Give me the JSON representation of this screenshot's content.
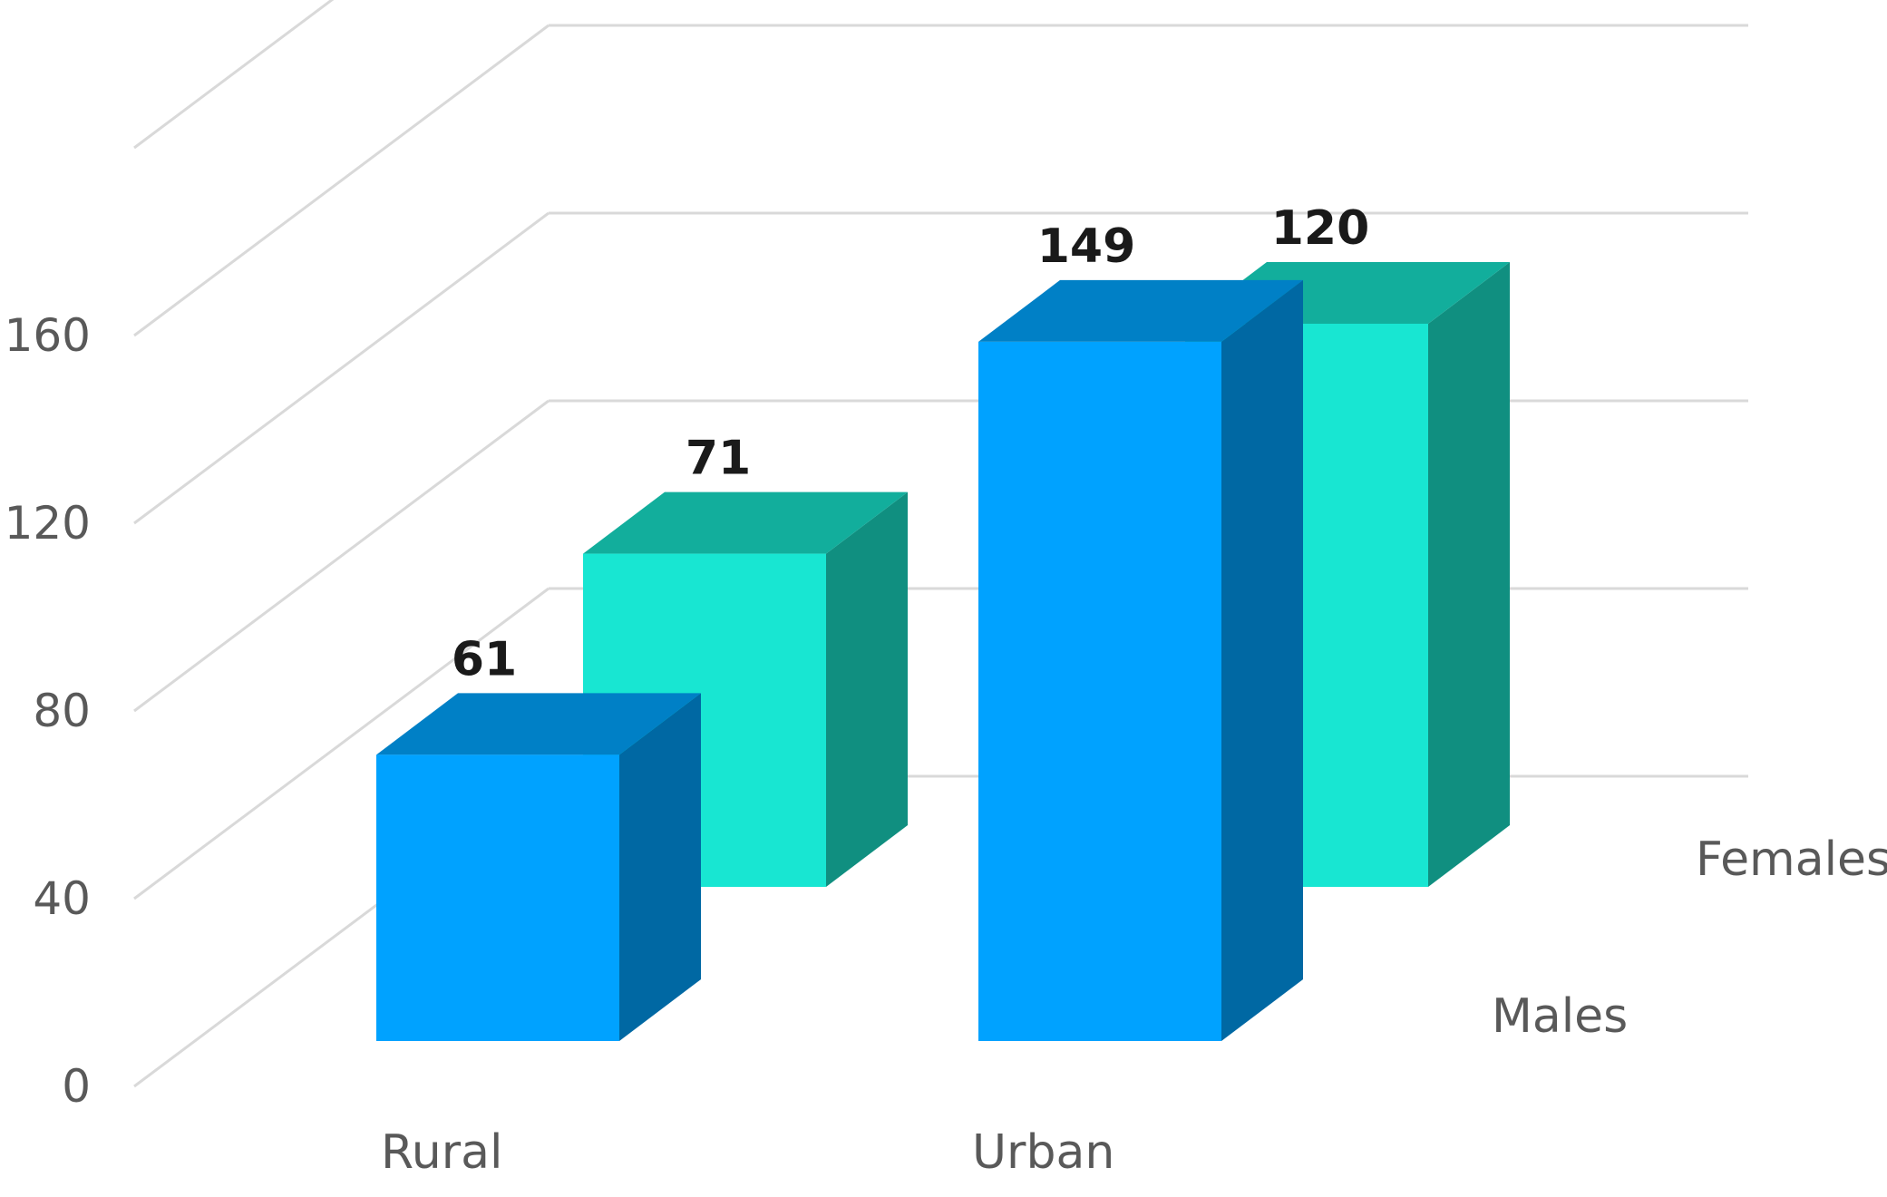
{
  "chart_data": {
    "type": "bar",
    "subtype": "3d-clustered-column",
    "categories": [
      "Rural",
      "Urban"
    ],
    "series": [
      {
        "name": "Males",
        "values": [
          61,
          149
        ],
        "color": "#00a2ff",
        "top_color": "#0080c6",
        "side_color": "#0068a3"
      },
      {
        "name": "Females",
        "values": [
          71,
          120
        ],
        "color": "#18e6d2",
        "top_color": "#12ae9c",
        "side_color": "#108f80"
      }
    ],
    "yticks": [
      "0",
      "40",
      "80",
      "120",
      "160"
    ],
    "ylim": [
      0,
      200
    ],
    "grid": true,
    "legend": "series labels at right, no legend box"
  }
}
